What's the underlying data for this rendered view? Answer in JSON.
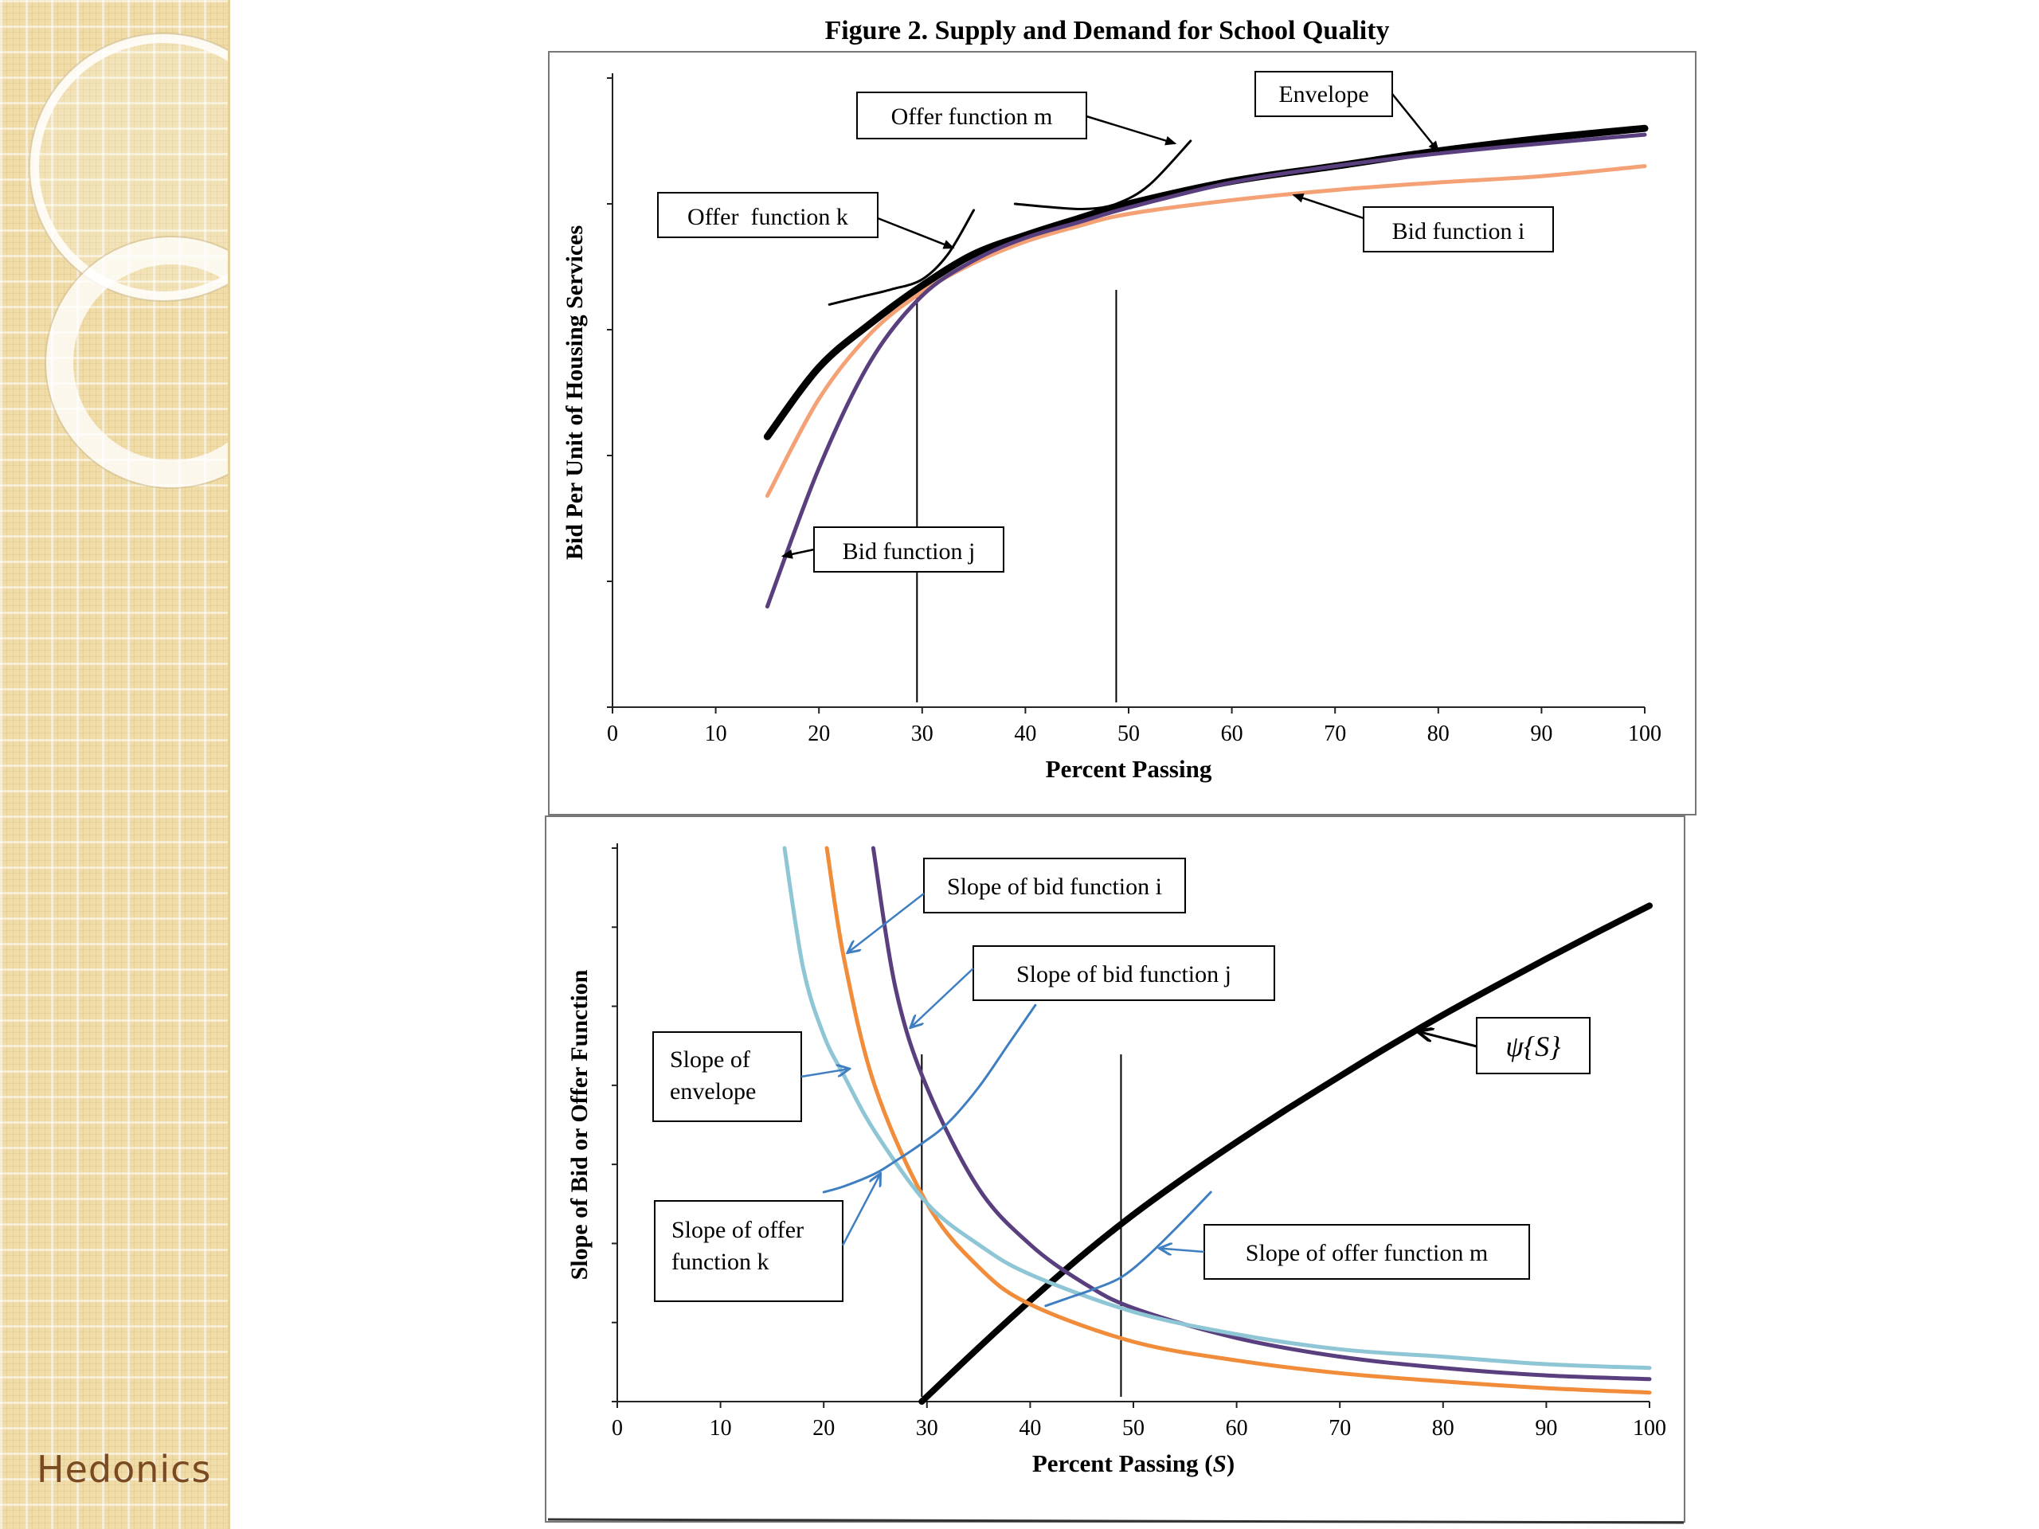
{
  "slide": {
    "brand": "Hedonics",
    "figure_title": "Figure 2.  Supply and Demand for School Quality"
  },
  "colors": {
    "envelope": "#000000",
    "bid_i": "#f4a176",
    "bid_j": "#5a3f7f",
    "slope_bid_i": "#f08c3a",
    "slope_envelope": "#8fc6d6",
    "offer_slope": "#3f7fc1",
    "sidebar": "#f0dca8",
    "brand_text": "#7a4b22"
  },
  "chart_data": [
    {
      "type": "line",
      "title": "Figure 2.  Supply and Demand for School Quality",
      "xlabel": "Percent Passing",
      "ylabel": "Bid Per Unit of Housing Services",
      "xlim": [
        0,
        100
      ],
      "xticks": [
        "0",
        "10",
        "20",
        "30",
        "40",
        "50",
        "60",
        "70",
        "80",
        "90",
        "100"
      ],
      "ylim": [
        0,
        5
      ],
      "grid": false,
      "vlines": [
        29.5,
        48.8
      ],
      "series": [
        {
          "name": "Envelope",
          "color": "#000000",
          "width": 9,
          "x": [
            15,
            20,
            25,
            30,
            35,
            40,
            45,
            50,
            60,
            70,
            80,
            90,
            100
          ],
          "y": [
            2.15,
            2.7,
            3.05,
            3.35,
            3.6,
            3.75,
            3.88,
            4.0,
            4.18,
            4.3,
            4.42,
            4.52,
            4.6
          ]
        },
        {
          "name": "Bid function i",
          "color": "#f4a176",
          "width": 5,
          "x": [
            15,
            20,
            25,
            30,
            35,
            40,
            45,
            50,
            60,
            70,
            80,
            90,
            100
          ],
          "y": [
            1.68,
            2.45,
            2.97,
            3.3,
            3.53,
            3.7,
            3.82,
            3.92,
            4.03,
            4.11,
            4.17,
            4.22,
            4.3
          ]
        },
        {
          "name": "Bid function j",
          "color": "#5a3f7f",
          "width": 5,
          "x": [
            15,
            20,
            25,
            30,
            35,
            40,
            45,
            50,
            60,
            70,
            80,
            90,
            100
          ],
          "y": [
            0.8,
            1.9,
            2.75,
            3.27,
            3.55,
            3.73,
            3.85,
            3.97,
            4.17,
            4.3,
            4.4,
            4.48,
            4.55
          ]
        },
        {
          "name": "Offer function k",
          "color": "#000000",
          "width": 3,
          "x": [
            21,
            24,
            27,
            30,
            32.5,
            35
          ],
          "y": [
            3.2,
            3.26,
            3.32,
            3.4,
            3.6,
            3.95
          ]
        },
        {
          "name": "Offer function m",
          "color": "#000000",
          "width": 3,
          "x": [
            39,
            43,
            46,
            48.8,
            52,
            56
          ],
          "y": [
            4.0,
            3.97,
            3.96,
            4.0,
            4.15,
            4.5
          ]
        }
      ],
      "annotations": [
        {
          "text": "Envelope",
          "points_to": [
            80,
            4.42
          ]
        },
        {
          "text": "Offer function m",
          "points_to": [
            54.5,
            4.48
          ]
        },
        {
          "text": "Offer  function k",
          "points_to": [
            33,
            3.65
          ]
        },
        {
          "text": "Bid function i",
          "points_to": [
            66,
            4.07
          ]
        },
        {
          "text": "Bid function j",
          "points_to": [
            16.5,
            1.2
          ]
        }
      ]
    },
    {
      "type": "line",
      "xlabel": "Percent Passing (S)",
      "ylabel": "Slope of Bid or Offer Function",
      "xlim": [
        0,
        100
      ],
      "xticks": [
        "0",
        "10",
        "20",
        "30",
        "40",
        "50",
        "60",
        "70",
        "80",
        "90",
        "100"
      ],
      "ylim": [
        0,
        7.4
      ],
      "grid": false,
      "vlines": [
        29.5,
        48.8
      ],
      "series": [
        {
          "name": "ψ{S}",
          "color": "#000000",
          "width": 8,
          "x": [
            29.5,
            35,
            40,
            45,
            50,
            55,
            60,
            65,
            70,
            75,
            80,
            85,
            90,
            95,
            100
          ],
          "y": [
            0,
            0.72,
            1.35,
            1.95,
            2.5,
            3.0,
            3.47,
            3.92,
            4.35,
            4.77,
            5.17,
            5.55,
            5.92,
            6.28,
            6.63
          ]
        },
        {
          "name": "Slope of bid function i",
          "color": "#f08c3a",
          "width": 5,
          "x": [
            20.3,
            22,
            25,
            30,
            35,
            40,
            50,
            60,
            70,
            80,
            90,
            100
          ],
          "y": [
            7.4,
            5.9,
            4.2,
            2.65,
            1.8,
            1.3,
            0.8,
            0.55,
            0.38,
            0.27,
            0.18,
            0.12
          ]
        },
        {
          "name": "Slope of bid function j",
          "color": "#5a3f7f",
          "width": 5,
          "x": [
            24.8,
            27,
            30,
            35,
            40,
            45,
            50,
            60,
            70,
            80,
            90,
            100
          ],
          "y": [
            7.4,
            5.5,
            4.2,
            2.85,
            2.1,
            1.6,
            1.25,
            0.85,
            0.6,
            0.45,
            0.35,
            0.3
          ]
        },
        {
          "name": "Slope of envelope",
          "color": "#8fc6d6",
          "width": 5,
          "x": [
            16.2,
            18,
            20,
            22,
            25,
            30,
            35,
            40,
            50,
            60,
            70,
            80,
            90,
            100
          ],
          "y": [
            7.4,
            5.8,
            4.9,
            4.35,
            3.6,
            2.65,
            2.1,
            1.7,
            1.2,
            0.9,
            0.7,
            0.6,
            0.5,
            0.45
          ]
        },
        {
          "name": "Slope of offer function k",
          "color": "#3f7fc1",
          "width": 3,
          "x": [
            20,
            22,
            25,
            27,
            29.5,
            32,
            35,
            38,
            40.5
          ],
          "y": [
            2.8,
            2.88,
            3.05,
            3.22,
            3.45,
            3.72,
            4.2,
            4.8,
            5.3
          ]
        },
        {
          "name": "Slope of offer function m",
          "color": "#3f7fc1",
          "width": 3,
          "x": [
            41.5,
            44,
            46.5,
            48.8,
            51,
            54,
            57.5
          ],
          "y": [
            1.28,
            1.4,
            1.52,
            1.66,
            1.9,
            2.3,
            2.8
          ]
        }
      ],
      "annotations": [
        {
          "text": "Slope of bid function i",
          "points_to": [
            22.3,
            6.0
          ]
        },
        {
          "text": "Slope of bid function j",
          "points_to": [
            28.4,
            5.0
          ]
        },
        {
          "text": "Slope of envelope",
          "points_to": [
            22.5,
            4.45
          ]
        },
        {
          "text": "Slope of offer function k",
          "points_to": [
            25.5,
            3.05
          ]
        },
        {
          "text": "Slope of offer function m",
          "points_to": [
            52.5,
            2.05
          ]
        },
        {
          "text": "ψ{S}",
          "points_to": [
            77.5,
            4.95
          ]
        }
      ]
    }
  ]
}
